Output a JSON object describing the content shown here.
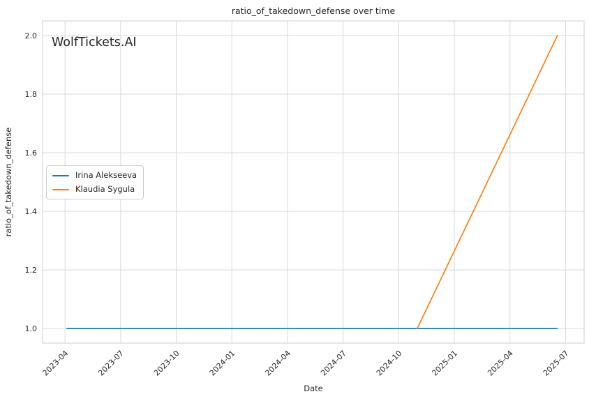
{
  "figure": {
    "title": "ratio_of_takedown_defense over time",
    "xlabel": "Date",
    "ylabel": "ratio_of_takedown_defense",
    "watermark": "WolfTickets.AI"
  },
  "legend": {
    "items": [
      {
        "label": "Irina Alekseeva",
        "color": "#1f77b4"
      },
      {
        "label": "Klaudia Sygula",
        "color": "#ff7f0e"
      }
    ]
  },
  "chart_data": {
    "type": "line",
    "title": "ratio_of_takedown_defense over time",
    "xlabel": "Date",
    "ylabel": "ratio_of_takedown_defense",
    "series": [
      {
        "name": "Irina Alekseeva",
        "color": "#1f77b4",
        "points": [
          [
            "2023-04-04",
            1.0
          ],
          [
            "2025-06-18",
            1.0
          ]
        ]
      },
      {
        "name": "Klaudia Sygula",
        "color": "#ff7f0e",
        "points": [
          [
            "2024-11-01",
            1.0
          ],
          [
            "2025-06-18",
            2.0
          ]
        ]
      }
    ],
    "x_ticks": [
      "2023-04",
      "2023-07",
      "2023-10",
      "2024-01",
      "2024-04",
      "2024-07",
      "2024-10",
      "2025-01",
      "2025-04",
      "2025-07"
    ],
    "y_ticks": [
      "1.0",
      "1.2",
      "1.4",
      "1.6",
      "1.8",
      "2.0"
    ],
    "xlim": [
      "2023-02-25",
      "2025-08-01"
    ],
    "ylim": [
      0.95,
      2.05
    ],
    "grid": true,
    "legend_position": "center-left",
    "colors": {
      "grid": "#d9d9d9",
      "spine": "#cccccc",
      "text": "#262626",
      "watermark": "#d2d2d2"
    }
  }
}
